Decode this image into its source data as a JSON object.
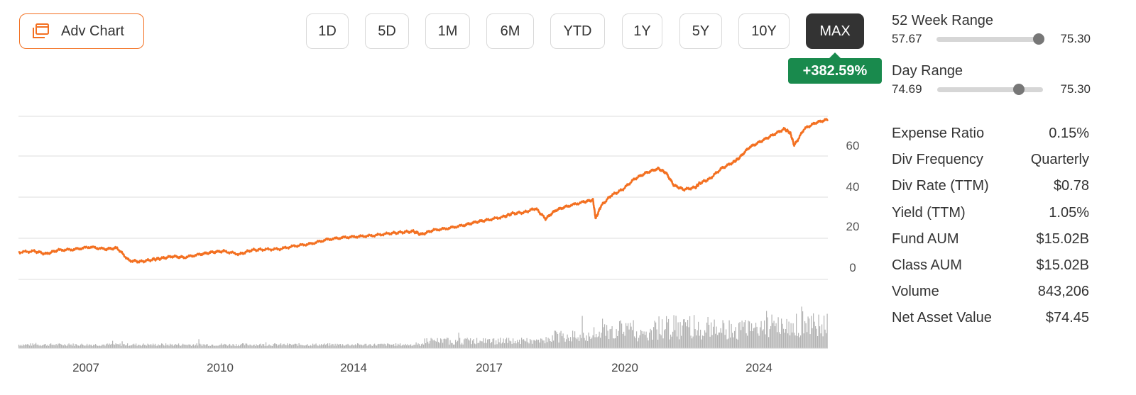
{
  "header": {
    "adv_chart_label": "Adv Chart",
    "ranges": [
      "1D",
      "5D",
      "1M",
      "6M",
      "YTD",
      "1Y",
      "5Y",
      "10Y",
      "MAX"
    ],
    "active_range": "MAX",
    "performance": "+382.59%"
  },
  "colors": {
    "accent": "#f37021",
    "price_line": "#f37021",
    "volume": "#b3b3b3",
    "positive": "#198a4d",
    "active_button": "#333333"
  },
  "icons": {
    "adv_chart": "windows-stack-icon"
  },
  "chart_data": {
    "type": "line",
    "x_tick_labels": [
      "2007",
      "2010",
      "2014",
      "2017",
      "2020",
      "2024"
    ],
    "y_tick_labels": [
      "0",
      "20",
      "40",
      "60"
    ],
    "ylim": [
      -3,
      75
    ],
    "grid": true,
    "series": [
      {
        "type": "line",
        "x": [
          2005.6,
          2006.0,
          2006.3,
          2006.6,
          2007.0,
          2007.4,
          2007.8,
          2008.1,
          2008.4,
          2008.7,
          2009.0,
          2009.2,
          2009.5,
          2009.8,
          2010.2,
          2010.5,
          2010.8,
          2011.2,
          2011.5,
          2011.8,
          2012.2,
          2012.6,
          2013.0,
          2013.4,
          2013.8,
          2014.2,
          2014.6,
          2015.0,
          2015.3,
          2015.6,
          2015.8,
          2016.1,
          2016.5,
          2016.9,
          2017.2,
          2017.5,
          2017.9,
          2018.1,
          2018.4,
          2018.7,
          2018.95,
          2019.2,
          2019.5,
          2019.9,
          2020.15,
          2020.22,
          2020.35,
          2020.6,
          2020.9,
          2021.2,
          2021.5,
          2021.8,
          2022.0,
          2022.2,
          2022.45,
          2022.75,
          2022.85,
          2023.1,
          2023.4,
          2023.7,
          2023.85,
          2024.1,
          2024.4,
          2024.7,
          2025.0,
          2025.15,
          2025.25,
          2025.5,
          2025.8,
          2026.1
        ],
        "y": [
          10,
          10.5,
          9.2,
          11,
          11.3,
          12.5,
          11.5,
          12,
          6,
          5.5,
          6.5,
          7,
          8,
          7.5,
          9,
          10,
          10.5,
          9,
          11,
          11.3,
          11.5,
          13,
          14,
          16,
          17,
          17.5,
          18,
          19,
          19.5,
          20,
          18.5,
          20.5,
          21.5,
          23,
          24.5,
          25.5,
          27,
          28.5,
          29,
          31,
          26,
          30,
          32,
          34,
          35,
          26,
          32,
          37,
          40,
          45,
          48,
          50,
          48,
          42,
          40,
          41,
          43,
          45,
          50,
          53,
          55,
          60,
          63,
          66,
          69,
          67,
          61,
          69,
          72,
          73.5
        ]
      },
      {
        "name": "Volume",
        "type": "bar"
      }
    ]
  },
  "ranges": {
    "week52": {
      "title": "52 Week Range",
      "low": "57.67",
      "high": "75.30",
      "position": 0.96
    },
    "day": {
      "title": "Day Range",
      "low": "74.69",
      "high": "75.30",
      "position": 0.77
    }
  },
  "stats": [
    {
      "label": "Expense Ratio",
      "value": "0.15%"
    },
    {
      "label": "Div Frequency",
      "value": "Quarterly"
    },
    {
      "label": "Div Rate (TTM)",
      "value": "$0.78"
    },
    {
      "label": "Yield (TTM)",
      "value": "1.05%"
    },
    {
      "label": "Fund AUM",
      "value": "$15.02B"
    },
    {
      "label": "Class AUM",
      "value": "$15.02B"
    },
    {
      "label": "Volume",
      "value": "843,206"
    },
    {
      "label": "Net Asset Value",
      "value": "$74.45"
    }
  ]
}
